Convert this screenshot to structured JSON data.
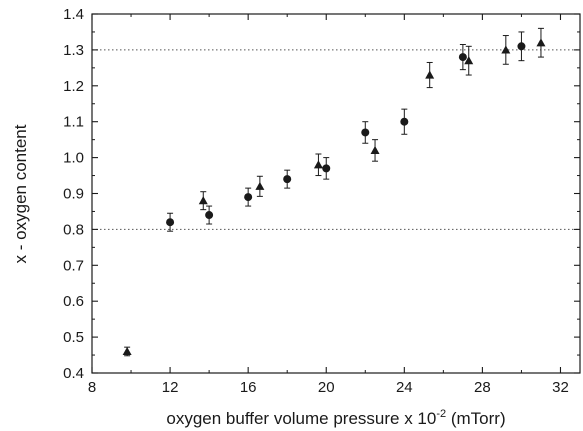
{
  "chart_data": {
    "type": "scatter",
    "title": "",
    "xlabel_parts": {
      "before": "oxygen buffer volume pressure x 10",
      "superscript": "-2",
      "after": " (mTorr)"
    },
    "ylabel": "x - oxygen content",
    "xlim": [
      8,
      33
    ],
    "ylim": [
      0.4,
      1.4
    ],
    "x_ticks": [
      8,
      12,
      16,
      20,
      24,
      28,
      32
    ],
    "y_ticks": [
      0.4,
      0.5,
      0.6,
      0.7,
      0.8,
      0.9,
      1.0,
      1.1,
      1.2,
      1.3,
      1.4
    ],
    "x_tick_labels": [
      "8",
      "12",
      "16",
      "20",
      "24",
      "28",
      "32"
    ],
    "y_tick_labels": [
      "0.4",
      "0.5",
      "0.6",
      "0.7",
      "0.8",
      "0.9",
      "1.0",
      "1.1",
      "1.2",
      "1.3",
      "1.4"
    ],
    "reference_lines": [
      0.8,
      1.3
    ],
    "grid": false,
    "legend": "none",
    "colors": {
      "marker": "#1a1a1a",
      "reference_line": "#555555",
      "axis": "#1a1a1a"
    },
    "series": [
      {
        "marker": "circle",
        "points": [
          {
            "x": 12.0,
            "y": 0.82,
            "err": 0.025
          },
          {
            "x": 14.0,
            "y": 0.84,
            "err": 0.025
          },
          {
            "x": 16.0,
            "y": 0.89,
            "err": 0.025
          },
          {
            "x": 18.0,
            "y": 0.94,
            "err": 0.025
          },
          {
            "x": 20.0,
            "y": 0.97,
            "err": 0.03
          },
          {
            "x": 22.0,
            "y": 1.07,
            "err": 0.03
          },
          {
            "x": 24.0,
            "y": 1.1,
            "err": 0.035
          },
          {
            "x": 27.0,
            "y": 1.28,
            "err": 0.035
          },
          {
            "x": 30.0,
            "y": 1.31,
            "err": 0.04
          }
        ]
      },
      {
        "marker": "triangle",
        "points": [
          {
            "x": 9.8,
            "y": 0.46,
            "err": 0.012
          },
          {
            "x": 13.7,
            "y": 0.88,
            "err": 0.025
          },
          {
            "x": 16.6,
            "y": 0.92,
            "err": 0.028
          },
          {
            "x": 19.6,
            "y": 0.98,
            "err": 0.03
          },
          {
            "x": 22.5,
            "y": 1.02,
            "err": 0.03
          },
          {
            "x": 25.3,
            "y": 1.23,
            "err": 0.035
          },
          {
            "x": 27.3,
            "y": 1.27,
            "err": 0.04
          },
          {
            "x": 29.2,
            "y": 1.3,
            "err": 0.04
          },
          {
            "x": 31.0,
            "y": 1.32,
            "err": 0.04
          }
        ]
      }
    ]
  }
}
